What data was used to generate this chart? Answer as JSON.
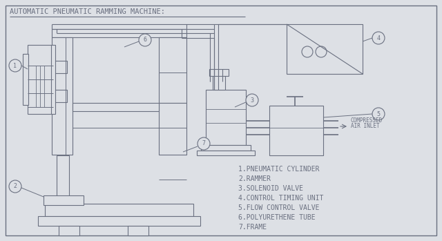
{
  "title": "AUTOMATIC PNEUMATIC RAMMING MACHINE:",
  "bg_color": "#dde0e5",
  "line_color": "#6a7080",
  "labels": [
    "1.PNEUMATIC CYLINDER",
    "2.RAMMER",
    "3.SOLENOID VALVE",
    "4.CONTROL TIMING UNIT",
    "5.FLOW CONTROL VALVE",
    "6.POLYURETHENE TUBE",
    "7.FRAME"
  ],
  "compressed_air_text": [
    "COMPRESSED",
    "AIR INLET"
  ]
}
